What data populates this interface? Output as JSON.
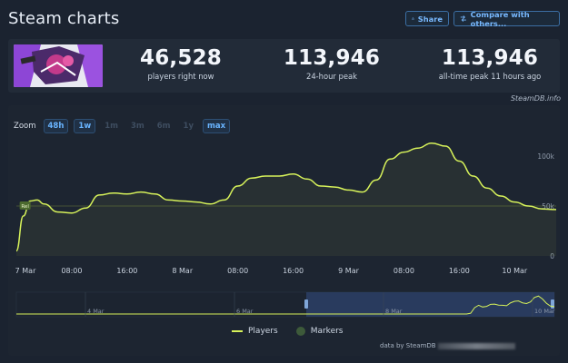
{
  "header": {
    "title": "Steam charts",
    "share_label": "Share",
    "compare_label": "Compare with others..."
  },
  "stats": {
    "players_now": {
      "value": "46,528",
      "label": "players right now"
    },
    "peak_24h": {
      "value": "113,946",
      "label": "24-hour peak"
    },
    "peak_all": {
      "value": "113,946",
      "label": "all-time peak 11 hours ago"
    }
  },
  "watermark": "SteamDB.info",
  "zoom": {
    "label": "Zoom",
    "options": [
      {
        "label": "48h",
        "active": true
      },
      {
        "label": "1w",
        "active": true
      },
      {
        "label": "1m",
        "active": false
      },
      {
        "label": "3m",
        "active": false
      },
      {
        "label": "6m",
        "active": false
      },
      {
        "label": "1y",
        "active": false
      },
      {
        "label": "max",
        "active": true
      }
    ]
  },
  "chart_data": {
    "type": "line",
    "title": "",
    "xlabel": "",
    "ylabel": "",
    "x_ticks": [
      "7 Mar",
      "08:00",
      "16:00",
      "8 Mar",
      "08:00",
      "16:00",
      "9 Mar",
      "08:00",
      "16:00",
      "10 Mar"
    ],
    "y_ticks": [
      "100k",
      "50k",
      "0"
    ],
    "ylim": [
      0,
      120000
    ],
    "reference_line": 50000,
    "marker_label": "Rel",
    "series": [
      {
        "name": "Players",
        "color": "#d7f25a",
        "x_hours": [
          0,
          1,
          2,
          3,
          4,
          6,
          8,
          10,
          12,
          14,
          16,
          18,
          20,
          22,
          24,
          26,
          28,
          30,
          32,
          34,
          36,
          38,
          40,
          42,
          44,
          46,
          48,
          50,
          52,
          54,
          56,
          58,
          60,
          62,
          64,
          66,
          68,
          70,
          72,
          74,
          76,
          78
        ],
        "values": [
          5000,
          40000,
          55000,
          56000,
          52000,
          44000,
          43000,
          48000,
          61000,
          63000,
          62000,
          64000,
          62000,
          56000,
          55000,
          54000,
          52000,
          56000,
          70000,
          78000,
          80000,
          80000,
          82000,
          77000,
          70000,
          69000,
          66000,
          64000,
          76000,
          97000,
          104000,
          108000,
          113000,
          110000,
          95000,
          80000,
          68000,
          60000,
          54000,
          50000,
          47000,
          46500
        ]
      }
    ],
    "navigator": {
      "labels": [
        "4 Mar",
        "6 Mar",
        "8 Mar",
        "10 Mar"
      ],
      "values": [
        0,
        0,
        0,
        0,
        0,
        0,
        0,
        0,
        0,
        0,
        0,
        0,
        0,
        0,
        0,
        0,
        0,
        0,
        0,
        0,
        0,
        0,
        0,
        0,
        0,
        0,
        0,
        0,
        0,
        0,
        0,
        0,
        0,
        0,
        0,
        0,
        0,
        0,
        0,
        0,
        0,
        0,
        0,
        0,
        0,
        0,
        0,
        0,
        0,
        0,
        0,
        0,
        0,
        0,
        0,
        0,
        0,
        0,
        0,
        0,
        0,
        0,
        0,
        0,
        0,
        0,
        0,
        0,
        0,
        0,
        0,
        0,
        0,
        0,
        0,
        0,
        0,
        0,
        0,
        0,
        0,
        0,
        0,
        0,
        0,
        0,
        0,
        0,
        0,
        0,
        0,
        0,
        0,
        0,
        0,
        0,
        0,
        0,
        0,
        0,
        0,
        0,
        0,
        0,
        0,
        0,
        0,
        0,
        0,
        0,
        0,
        0,
        0,
        0,
        5000,
        40000,
        55000,
        44000,
        48000,
        61000,
        62000,
        56000,
        55000,
        52000,
        70000,
        80000,
        82000,
        70000,
        66000,
        76000,
        104000,
        113000,
        95000,
        68000,
        50000,
        46500
      ]
    },
    "legend": [
      {
        "label": "Players",
        "color": "#d7f25a"
      },
      {
        "label": "Markers",
        "color": "#3d5a3a"
      }
    ]
  },
  "credit": "data by SteamDB"
}
